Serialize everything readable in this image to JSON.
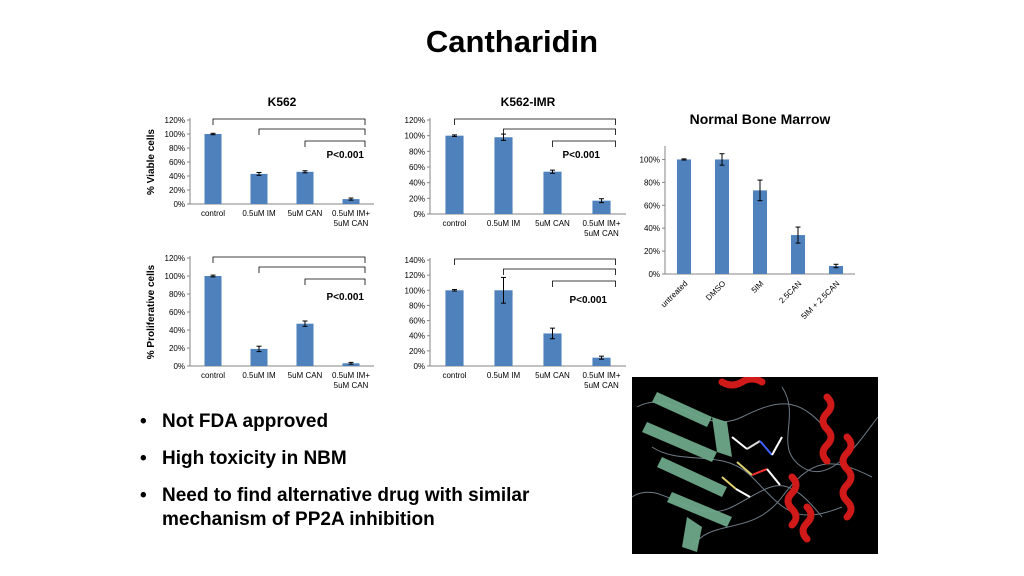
{
  "title": "Cantharidin",
  "bullets": [
    "Not FDA approved",
    "High toxicity in NBM",
    "Need to find alternative drug with similar mechanism of PP2A inhibition"
  ],
  "bullet_glyph": "•",
  "bar_color": "#4f81bd",
  "chart_data": [
    {
      "id": "k562-viable",
      "type": "bar",
      "title": "K562",
      "ylabel": "% Viable cells",
      "categories": [
        "control",
        "0.5uM IM",
        "5uM CAN",
        "0.5uM IM+ 5uM CAN"
      ],
      "values": [
        100,
        43,
        46,
        7
      ],
      "errors": [
        1,
        2,
        1.5,
        1.5
      ],
      "ylim": [
        0,
        120
      ],
      "yticks": [
        "0%",
        "20%",
        "40%",
        "60%",
        "80%",
        "100%",
        "120%"
      ],
      "pvalue": "P<0.001",
      "brackets": [
        [
          0,
          3
        ],
        [
          1,
          3
        ],
        [
          2,
          3
        ]
      ]
    },
    {
      "id": "k562imr-viable",
      "type": "bar",
      "title": "K562-IMR",
      "ylabel": "",
      "categories": [
        "control",
        "0.5uM IM",
        "5uM CAN",
        "0.5uM IM+ 5uM CAN"
      ],
      "values": [
        100,
        98,
        54,
        17
      ],
      "errors": [
        1,
        4,
        2,
        2.5
      ],
      "ylim": [
        0,
        120
      ],
      "yticks": [
        "0%",
        "20%",
        "40%",
        "60%",
        "80%",
        "100%",
        "120%"
      ],
      "pvalue": "P<0.001",
      "brackets": [
        [
          0,
          3
        ],
        [
          1,
          3
        ],
        [
          2,
          3
        ]
      ]
    },
    {
      "id": "k562-proliferative",
      "type": "bar",
      "title": "",
      "ylabel": "% Proliferative cells",
      "categories": [
        "control",
        "0.5uM IM",
        "5uM CAN",
        "0.5uM IM+ 5uM CAN"
      ],
      "values": [
        100,
        19,
        47,
        3
      ],
      "errors": [
        1,
        3,
        3,
        1
      ],
      "ylim": [
        0,
        120
      ],
      "yticks": [
        "0%",
        "20%",
        "40%",
        "60%",
        "80%",
        "100%",
        "120%"
      ],
      "pvalue": "P<0.001",
      "brackets": [
        [
          0,
          3
        ],
        [
          1,
          3
        ],
        [
          2,
          3
        ]
      ]
    },
    {
      "id": "k562imr-proliferative",
      "type": "bar",
      "title": "",
      "ylabel": "",
      "categories": [
        "control",
        "0.5uM IM",
        "5uM CAN",
        "0.5uM IM+ 5uM CAN"
      ],
      "values": [
        100,
        100,
        43,
        11
      ],
      "errors": [
        1,
        17,
        7,
        2
      ],
      "ylim": [
        0,
        140
      ],
      "yticks": [
        "0%",
        "20%",
        "40%",
        "60%",
        "80%",
        "100%",
        "120%",
        "140%"
      ],
      "pvalue": "P<0.001",
      "brackets": [
        [
          0,
          3
        ],
        [
          1,
          3
        ],
        [
          2,
          3
        ]
      ]
    },
    {
      "id": "normal-bone-marrow",
      "type": "bar",
      "title": "Normal Bone Marrow",
      "ylabel": "",
      "categories": [
        "untreated",
        "DMSO",
        "5IM",
        "2.5CAN",
        "5IM + 2.5CAN"
      ],
      "values": [
        100,
        100,
        73,
        34,
        7
      ],
      "errors": [
        0.5,
        5,
        9,
        7,
        1.5
      ],
      "ylim": [
        0,
        110
      ],
      "yticks": [
        "0%",
        "20%",
        "40%",
        "60%",
        "80%",
        "100%"
      ],
      "pvalue": "",
      "brackets": []
    }
  ],
  "molecule_image": {
    "kind": "protein ribbon structure with bound ligand",
    "colors": [
      "#000000",
      "#6ea88a",
      "#d01a1a",
      "#8a9aa8"
    ]
  }
}
